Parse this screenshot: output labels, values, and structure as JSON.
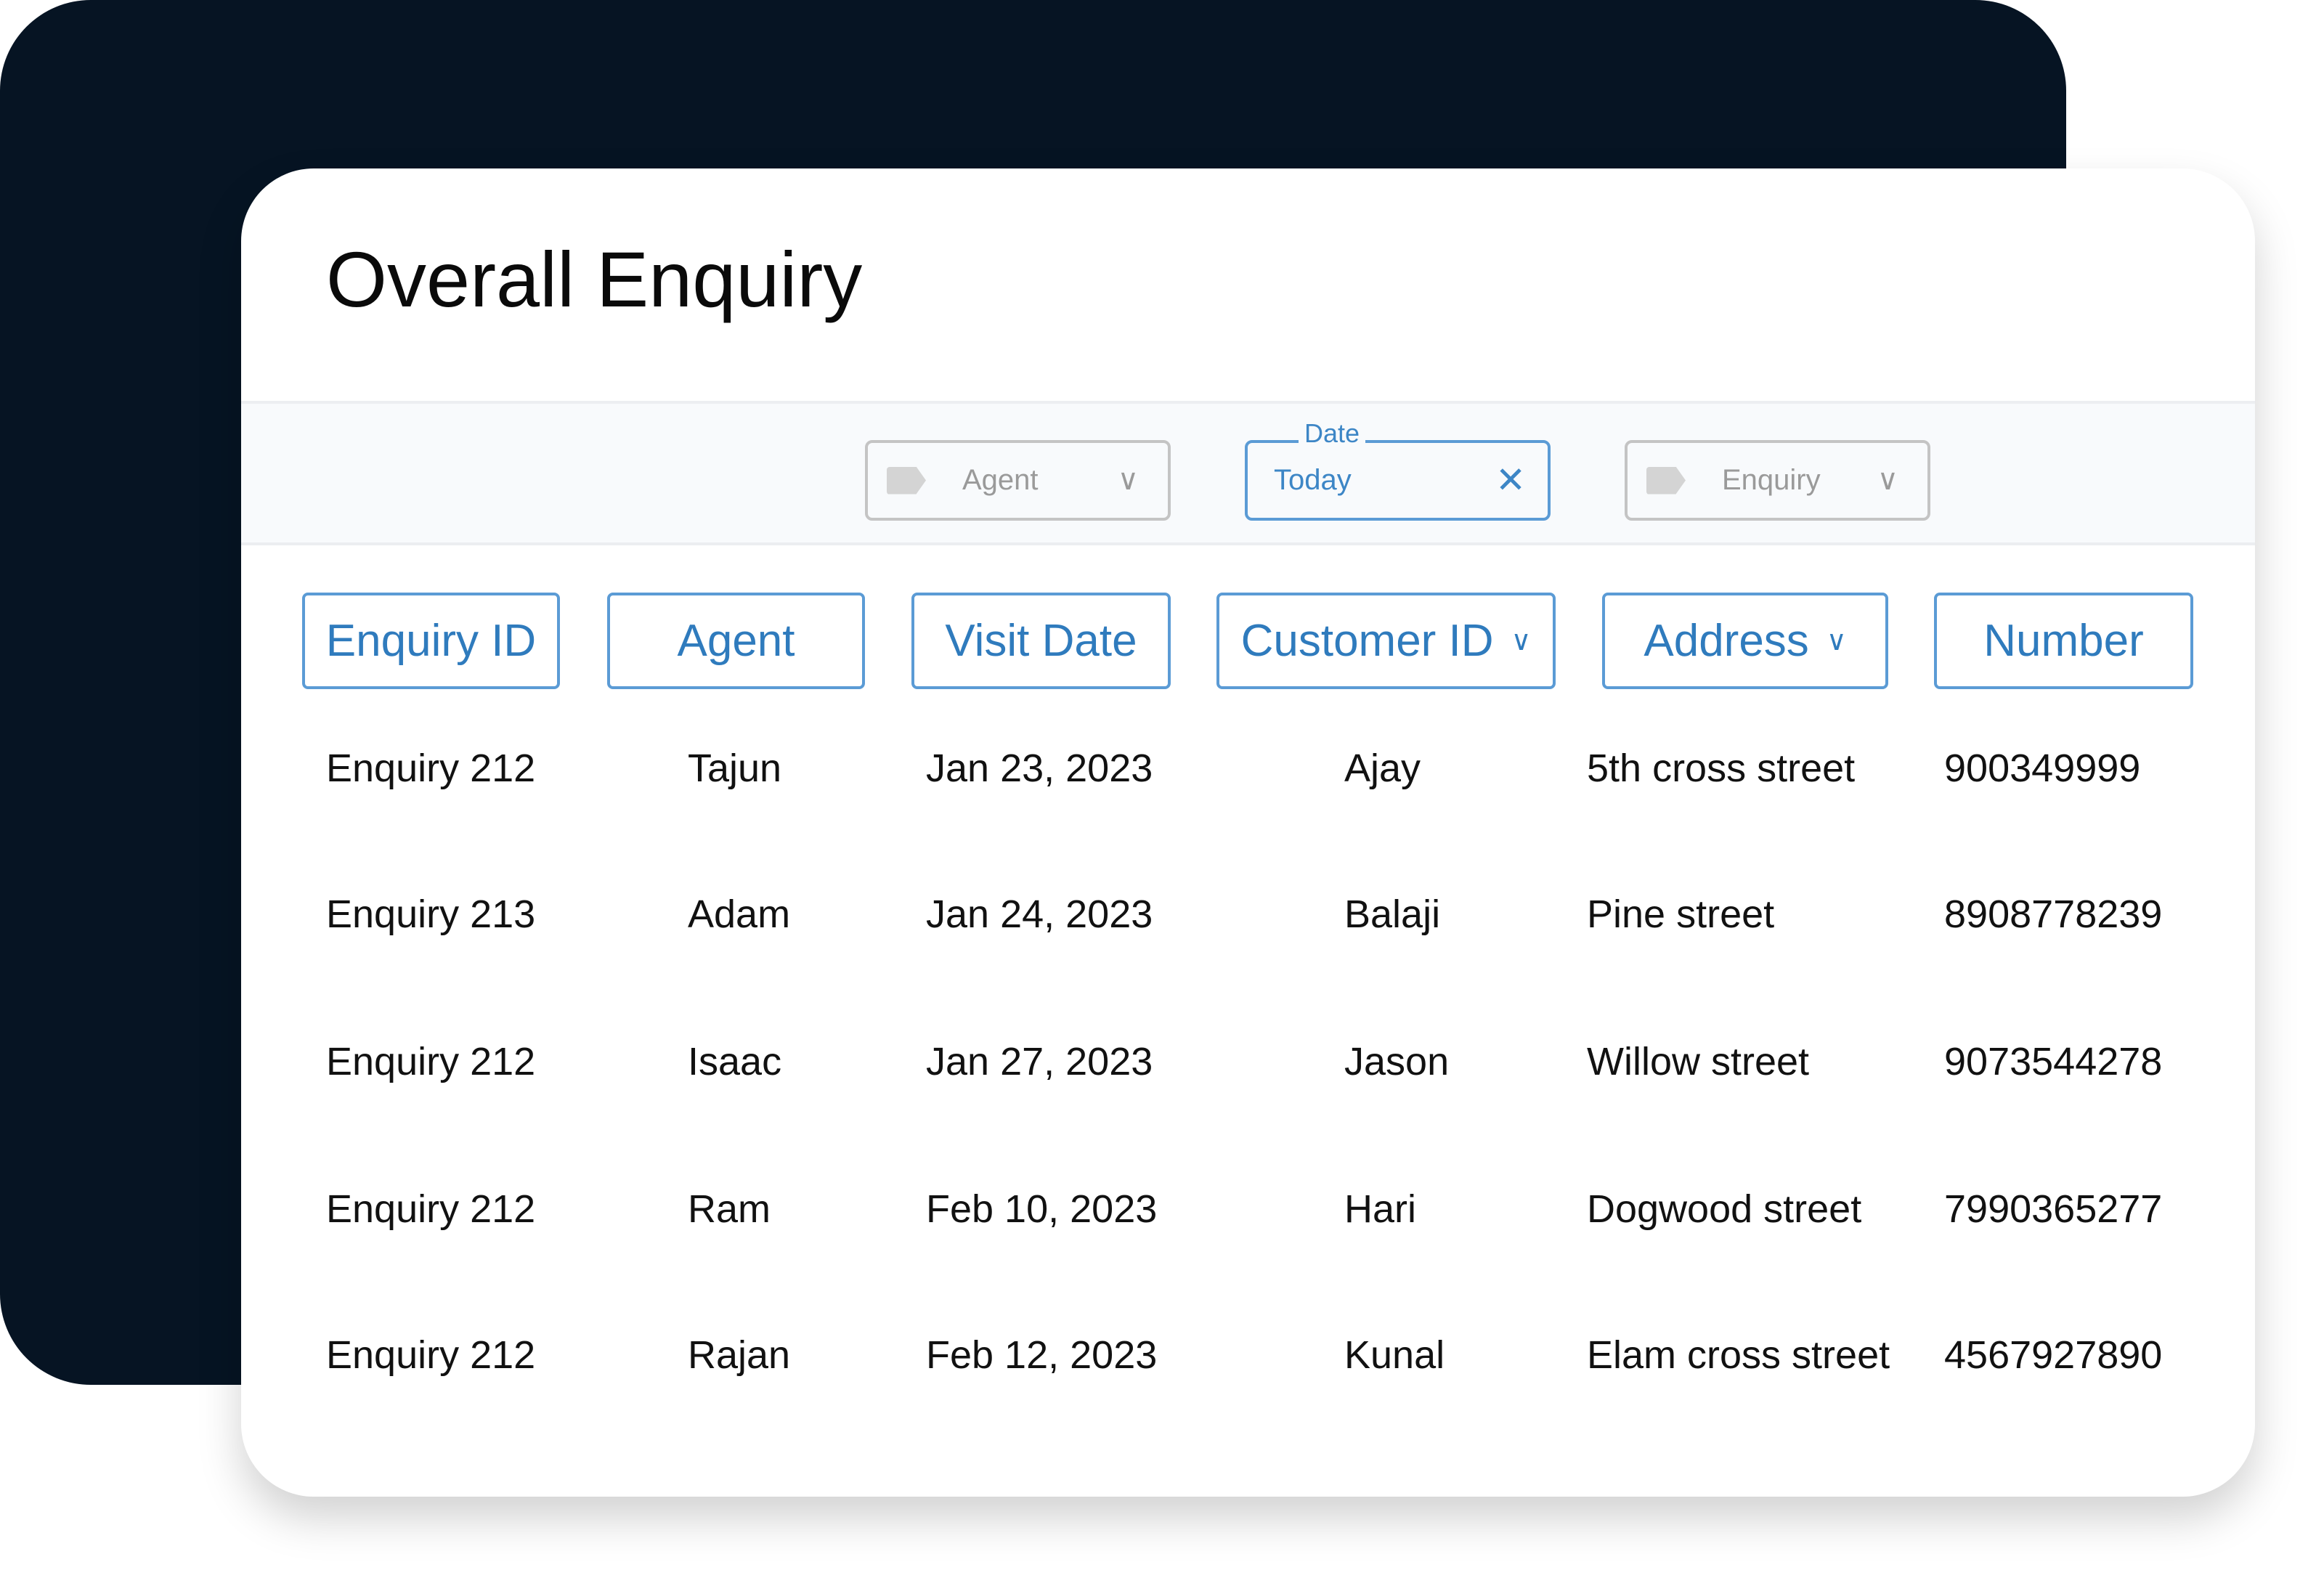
{
  "title": "Overall Enquiry",
  "filters": {
    "agent": {
      "placeholder": "Agent",
      "icon": "tag-icon"
    },
    "date": {
      "label": "Date",
      "value": "Today",
      "clear_icon": "close-icon"
    },
    "enquiry": {
      "placeholder": "Enquiry",
      "icon": "tag-icon"
    }
  },
  "table": {
    "columns": [
      {
        "label": "Enquiry ID",
        "dropdown": false
      },
      {
        "label": "Agent",
        "dropdown": false
      },
      {
        "label": "Visit Date",
        "dropdown": false
      },
      {
        "label": "Customer ID",
        "dropdown": true
      },
      {
        "label": "Address",
        "dropdown": true
      },
      {
        "label": "Number",
        "dropdown": false
      }
    ],
    "rows": [
      [
        "Enquiry 212",
        "Tajun",
        "Jan 23, 2023",
        "Ajay",
        "5th cross street",
        "900349999"
      ],
      [
        "Enquiry 213",
        "Adam",
        "Jan 24, 2023",
        "Balaji",
        "Pine street",
        "8908778239"
      ],
      [
        "Enquiry 212",
        "Isaac",
        "Jan 27, 2023",
        "Jason",
        "Willow street",
        "9073544278"
      ],
      [
        "Enquiry 212",
        "Ram",
        "Feb 10, 2023",
        "Hari",
        "Dogwood street",
        "7990365277"
      ],
      [
        "Enquiry 212",
        "Rajan",
        "Feb 12, 2023",
        "Kunal",
        "Elam cross street",
        "4567927890"
      ]
    ]
  },
  "colors": {
    "accent": "#3d86c6",
    "background_panel": "#061423"
  }
}
